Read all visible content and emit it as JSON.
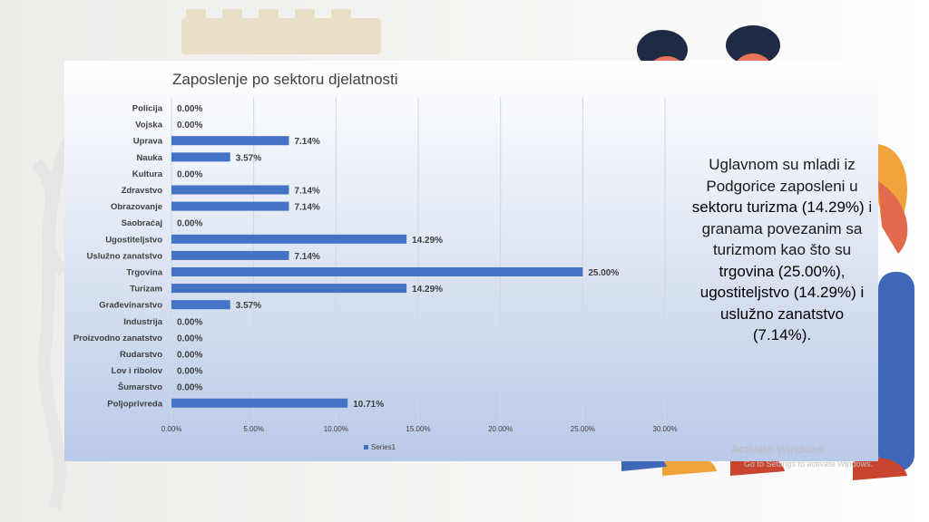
{
  "chart_data": {
    "type": "bar",
    "orientation": "horizontal",
    "title": "Zaposlenje po sektoru djelatnosti",
    "categories": [
      "Policija",
      "Vojska",
      "Uprava",
      "Nauka",
      "Kultura",
      "Zdravstvo",
      "Obrazovanje",
      "Saobraćaj",
      "Ugostiteljstvo",
      "Uslužno zanatstvo",
      "Trgovina",
      "Turizam",
      "Građevinarstvo",
      "Industrija",
      "Proizvodno zanatstvo",
      "Rudarstvo",
      "Lov i ribolov",
      "Šumarstvo",
      "Poljoprivreda"
    ],
    "series": [
      {
        "name": "Series1",
        "values": [
          0,
          0,
          7.14,
          3.57,
          0,
          7.14,
          7.14,
          0,
          14.29,
          7.14,
          25.0,
          14.29,
          3.57,
          0,
          0,
          0,
          0,
          0,
          10.71
        ]
      }
    ],
    "value_labels": [
      "0.00%",
      "0.00%",
      "7.14%",
      "3.57%",
      "0.00%",
      "7.14%",
      "7.14%",
      "0.00%",
      "14.29%",
      "7.14%",
      "25.00%",
      "14.29%",
      "3.57%",
      "0.00%",
      "0.00%",
      "0.00%",
      "0.00%",
      "0.00%",
      "10.71%"
    ],
    "x_ticks": [
      "0.00%",
      "5.00%",
      "10.00%",
      "15.00%",
      "20.00%",
      "25.00%",
      "30.00%"
    ],
    "xlim": [
      0,
      30
    ],
    "grid": true,
    "legend_position": "bottom",
    "bar_color": "#4472c4"
  },
  "side_text": {
    "p1": "Uglavnom su mladi iz Podgorice zaposleni u ",
    "b1": "sektoru turizma (14.29%)",
    "p2": " i granama povezanim sa turizmom kao što su ",
    "b2": "trgovina (25.00%), ugostiteljstvo (14.29%) i uslužno zanatstvo (7.14%).",
    "p3": ""
  },
  "watermark": {
    "title": "Activate Windows",
    "subtitle": "Go to Settings to activate Windows."
  }
}
